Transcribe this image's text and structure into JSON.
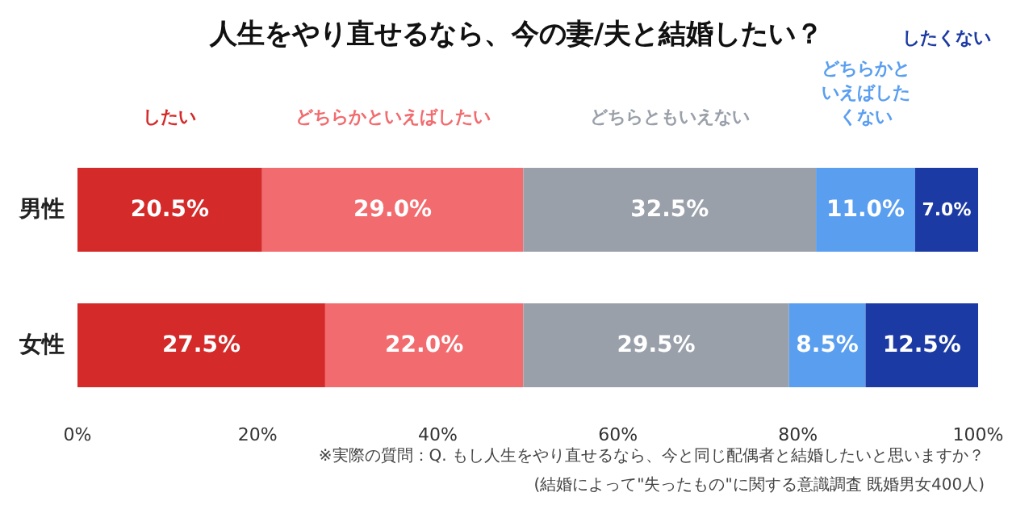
{
  "chart_data": {
    "type": "bar",
    "orientation": "horizontal",
    "stacked": true,
    "title": "人生をやり直せるなら、今の妻/夫と結婚したい？",
    "categories": [
      "男性",
      "女性"
    ],
    "series": [
      {
        "name": "したい",
        "color": "#d42a2a",
        "values": [
          20.5,
          27.5
        ],
        "value_labels": [
          "20.5%",
          "27.5%"
        ]
      },
      {
        "name": "どちらかといえばしたい",
        "color": "#f26b6e",
        "values": [
          29.0,
          22.0
        ],
        "value_labels": [
          "29.0%",
          "22.0%"
        ]
      },
      {
        "name": "どちらともいえない",
        "color": "#9aa0aa",
        "values": [
          32.5,
          29.5
        ],
        "value_labels": [
          "32.5%",
          "29.5%"
        ]
      },
      {
        "name": "どちらかといえばしたくない",
        "color": "#5a9ef0",
        "values": [
          11.0,
          8.5
        ],
        "value_labels": [
          "11.0%",
          "8.5%"
        ]
      },
      {
        "name": "したくない",
        "color": "#1c3aa3",
        "values": [
          7.0,
          12.5
        ],
        "value_labels": [
          "7.0%",
          "12.5%"
        ]
      }
    ],
    "xlim": [
      0,
      100
    ],
    "xticks": [
      {
        "value": 0,
        "label": "0%"
      },
      {
        "value": 20,
        "label": "20%"
      },
      {
        "value": 40,
        "label": "40%"
      },
      {
        "value": 60,
        "label": "60%"
      },
      {
        "value": 80,
        "label": "80%"
      },
      {
        "value": 100,
        "label": "100%"
      }
    ],
    "legend": "top",
    "annotations": [
      "※実際の質問：Q. もし人生をやり直せるなら、今と同じ配偶者と結婚したいと思いますか？",
      "(結婚によって\"失ったもの\"に関する意識調査 既婚男女400人)"
    ]
  }
}
